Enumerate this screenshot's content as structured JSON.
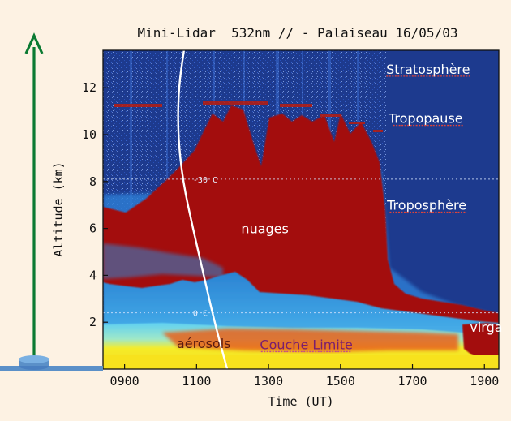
{
  "chart_data": {
    "type": "heatmap",
    "title": "Mini-Lidar  532nm // - Palaiseau 16/05/03",
    "xlabel": "Time (UT)",
    "ylabel": "Altitude (km)",
    "xlim": [
      840,
      1940
    ],
    "ylim": [
      0,
      13.6
    ],
    "x_ticks": [
      900,
      1100,
      1300,
      1500,
      1700,
      1900
    ],
    "x_tick_labels": [
      "0900",
      "1100",
      "1300",
      "1500",
      "1700",
      "1900"
    ],
    "y_ticks": [
      2,
      4,
      6,
      8,
      10,
      12
    ],
    "y_tick_labels": [
      "2",
      "4",
      "6",
      "8",
      "10",
      "12"
    ],
    "isotherms": [
      {
        "label": "0 C",
        "altitude_km": 2.4
      },
      {
        "label": "-30 C",
        "altitude_km": 8.1
      }
    ],
    "white_curve": [
      {
        "t": 1065,
        "alt": 13.6
      },
      {
        "t": 1050,
        "alt": 12.0
      },
      {
        "t": 1048,
        "alt": 10.0
      },
      {
        "t": 1062,
        "alt": 8.0
      },
      {
        "t": 1090,
        "alt": 6.0
      },
      {
        "t": 1120,
        "alt": 4.0
      },
      {
        "t": 1150,
        "alt": 2.0
      },
      {
        "t": 1185,
        "alt": 0.0
      }
    ],
    "annotations": [
      {
        "text": "Stratosphère",
        "t": 1860,
        "alt": 12.6
      },
      {
        "text": "Tropopause",
        "t": 1840,
        "alt": 10.5
      },
      {
        "text": "Troposphère",
        "t": 1850,
        "alt": 6.8
      },
      {
        "text": "nuages",
        "t": 1290,
        "alt": 5.8
      },
      {
        "text": "virga",
        "t": 1905,
        "alt": 1.6
      },
      {
        "text": "aérosols",
        "t": 1120,
        "alt": 0.9
      },
      {
        "text": "Couche Limite",
        "t": 1405,
        "alt": 0.85
      }
    ],
    "colors": {
      "background": "#1d3a8e",
      "cloud": "#a30e0a",
      "aerosol": "#fbe41c",
      "mid": "#32aee6",
      "arrow": "#0b7a32",
      "ground": "#5b90c8"
    }
  }
}
